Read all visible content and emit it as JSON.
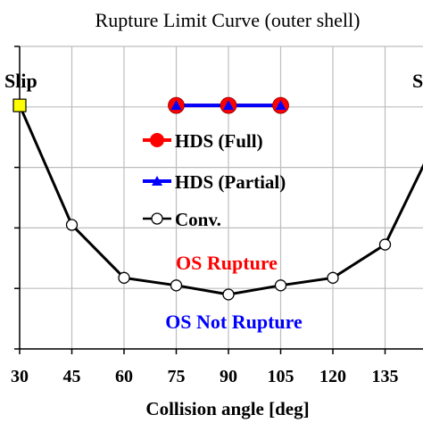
{
  "chart_data": {
    "type": "line",
    "title": "Rupture Limit Curve (outer shell)",
    "xlabel": "Collision angle [deg]",
    "ylabel": "",
    "x_ticks": [
      30,
      45,
      60,
      75,
      90,
      105,
      120,
      135
    ],
    "x_tick_labels": [
      "30",
      "45",
      "60",
      "75",
      "90",
      "105",
      "120",
      "135"
    ],
    "xlim": [
      30,
      150
    ],
    "ylim": [
      0,
      1
    ],
    "y_gridlines": [
      0.0,
      0.2,
      0.4,
      0.6,
      0.8,
      1.0
    ],
    "grid": true,
    "legend_placement": "upper-center",
    "series": [
      {
        "name": "HDS (Full)",
        "color": "#ff0000",
        "marker": "circle-filled",
        "x": [
          75,
          90,
          105
        ],
        "y": [
          0.805,
          0.805,
          0.805
        ]
      },
      {
        "name": "HDS (Partial)",
        "color": "#0000ff",
        "marker": "triangle-filled",
        "x": [
          75,
          90,
          105
        ],
        "y": [
          0.805,
          0.805,
          0.805
        ]
      },
      {
        "name": "Conv.",
        "color": "#000000",
        "marker": "circle-open",
        "x": [
          30,
          45,
          60,
          75,
          90,
          105,
          120,
          135,
          150
        ],
        "y": [
          0.805,
          0.41,
          0.235,
          0.21,
          0.18,
          0.21,
          0.235,
          0.345,
          0.7
        ]
      }
    ],
    "slip_marker": {
      "x": 30,
      "y": 0.805,
      "color": "#ffff00"
    },
    "annotations": [
      {
        "text": "Slip",
        "color": "#000000"
      },
      {
        "text": "S",
        "color": "#000000"
      },
      {
        "text": "OS Rupture",
        "color": "#ff0000"
      },
      {
        "text": "OS Not Rupture",
        "color": "#0000ff"
      }
    ]
  }
}
